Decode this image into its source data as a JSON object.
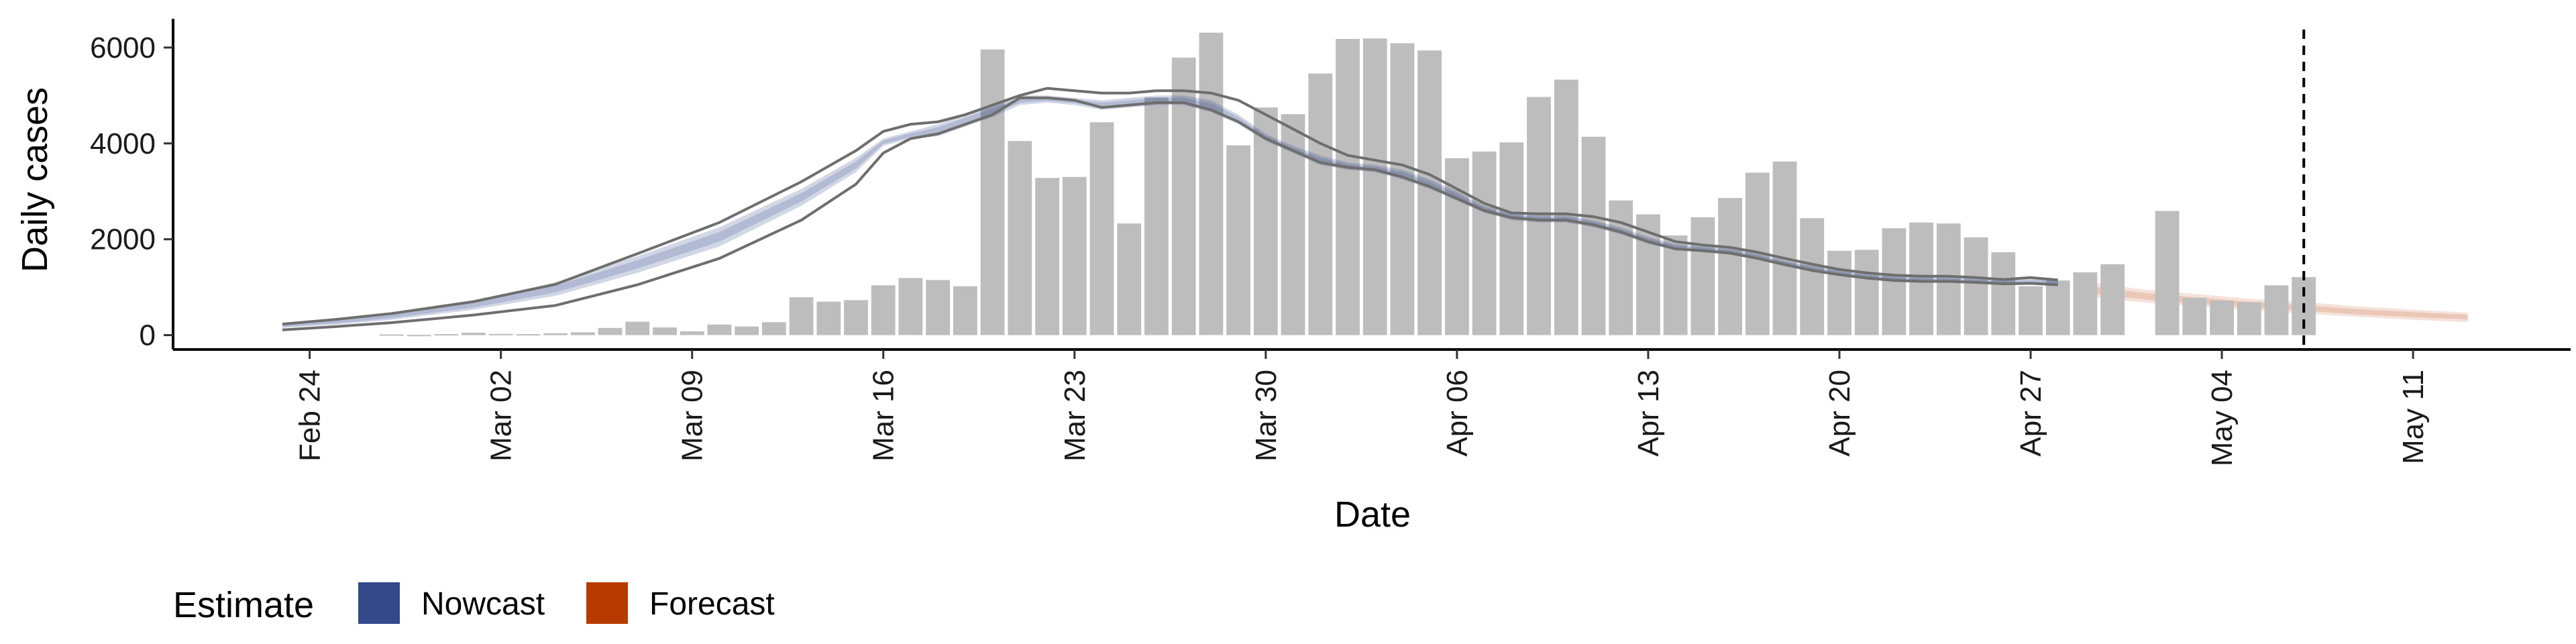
{
  "chart_data": {
    "type": "bar",
    "xlabel": "Date",
    "ylabel": "Daily cases",
    "ylim": [
      -300,
      6600
    ],
    "yticks": [
      0,
      2000,
      4000,
      6000
    ],
    "xticks": [
      "Feb 24",
      "Mar 02",
      "Mar 09",
      "Mar 16",
      "Mar 23",
      "Mar 30",
      "Apr 06",
      "Apr 13",
      "Apr 20",
      "Apr 27",
      "May 04",
      "May 11"
    ],
    "xrange": [
      "2020-02-19",
      "2020-05-15"
    ],
    "vline_date": "2020-05-07",
    "grid": false,
    "colors": {
      "bars": "#bdbdbd",
      "nowcast": "#34498a",
      "forecast": "#b73b00",
      "outline_lines": "#6e6e6e",
      "axis": "#000000"
    },
    "bars": {
      "dates": [
        "2020-02-27",
        "2020-02-28",
        "2020-02-29",
        "2020-03-01",
        "2020-03-02",
        "2020-03-03",
        "2020-03-04",
        "2020-03-05",
        "2020-03-06",
        "2020-03-07",
        "2020-03-08",
        "2020-03-09",
        "2020-03-10",
        "2020-03-11",
        "2020-03-12",
        "2020-03-13",
        "2020-03-14",
        "2020-03-15",
        "2020-03-16",
        "2020-03-17",
        "2020-03-18",
        "2020-03-19",
        "2020-03-20",
        "2020-03-21",
        "2020-03-22",
        "2020-03-23",
        "2020-03-24",
        "2020-03-25",
        "2020-03-26",
        "2020-03-27",
        "2020-03-28",
        "2020-03-29",
        "2020-03-30",
        "2020-03-31",
        "2020-04-01",
        "2020-04-02",
        "2020-04-03",
        "2020-04-04",
        "2020-04-05",
        "2020-04-06",
        "2020-04-07",
        "2020-04-08",
        "2020-04-09",
        "2020-04-10",
        "2020-04-11",
        "2020-04-12",
        "2020-04-13",
        "2020-04-14",
        "2020-04-15",
        "2020-04-16",
        "2020-04-17",
        "2020-04-18",
        "2020-04-19",
        "2020-04-20",
        "2020-04-21",
        "2020-04-22",
        "2020-04-23",
        "2020-04-24",
        "2020-04-25",
        "2020-04-26",
        "2020-04-27",
        "2020-04-28",
        "2020-04-29",
        "2020-04-30",
        "2020-05-01",
        "2020-05-02",
        "2020-05-03",
        "2020-05-04",
        "2020-05-05",
        "2020-05-06",
        "2020-05-07"
      ],
      "values": [
        15,
        5,
        20,
        50,
        25,
        20,
        40,
        60,
        150,
        280,
        160,
        80,
        220,
        180,
        270,
        790,
        700,
        730,
        1040,
        1190,
        1150,
        1020,
        5960,
        4050,
        3280,
        3300,
        4440,
        2330,
        4960,
        5790,
        6310,
        3960,
        4750,
        4610,
        5460,
        6180,
        6190,
        6090,
        5940,
        3690,
        3830,
        4020,
        4970,
        5330,
        4140,
        2810,
        2520,
        2080,
        2460,
        2860,
        3390,
        3620,
        2440,
        1760,
        1780,
        2230,
        2350,
        2330,
        2040,
        1730,
        1020,
        1140,
        1310,
        1480,
        0,
        2590,
        780,
        720,
        690,
        1040,
        1210
      ]
    },
    "nowcast": {
      "dates": [
        "2020-02-23",
        "2020-02-25",
        "2020-02-27",
        "2020-03-01",
        "2020-03-04",
        "2020-03-07",
        "2020-03-10",
        "2020-03-13",
        "2020-03-15",
        "2020-03-16",
        "2020-03-17",
        "2020-03-18",
        "2020-03-19",
        "2020-03-20",
        "2020-03-21",
        "2020-03-22",
        "2020-03-23",
        "2020-03-24",
        "2020-03-25",
        "2020-03-26",
        "2020-03-27",
        "2020-03-28",
        "2020-03-29",
        "2020-03-30",
        "2020-03-31",
        "2020-04-01",
        "2020-04-02",
        "2020-04-03",
        "2020-04-04",
        "2020-04-05",
        "2020-04-06",
        "2020-04-07",
        "2020-04-08",
        "2020-04-09",
        "2020-04-10",
        "2020-04-11",
        "2020-04-12",
        "2020-04-13",
        "2020-04-14",
        "2020-04-15",
        "2020-04-16",
        "2020-04-17",
        "2020-04-18",
        "2020-04-19",
        "2020-04-20",
        "2020-04-21",
        "2020-04-22",
        "2020-04-23",
        "2020-04-24",
        "2020-04-25",
        "2020-04-26",
        "2020-04-27",
        "2020-04-28"
      ],
      "upper": [
        230,
        330,
        460,
        720,
        1100,
        1650,
        2250,
        3050,
        3700,
        4100,
        4250,
        4400,
        4600,
        4800,
        5000,
        5000,
        4950,
        4900,
        4950,
        5000,
        5000,
        4900,
        4600,
        4200,
        3950,
        3750,
        3600,
        3550,
        3450,
        3250,
        3000,
        2700,
        2550,
        2500,
        2500,
        2400,
        2250,
        2050,
        1900,
        1850,
        1800,
        1700,
        1550,
        1450,
        1350,
        1280,
        1230,
        1200,
        1200,
        1170,
        1150,
        1180,
        1180
      ],
      "lower": [
        150,
        220,
        320,
        530,
        820,
        1300,
        1850,
        2700,
        3400,
        3950,
        4100,
        4150,
        4350,
        4550,
        4800,
        4850,
        4800,
        4700,
        4750,
        4800,
        4800,
        4650,
        4400,
        4050,
        3800,
        3550,
        3450,
        3400,
        3250,
        3050,
        2800,
        2550,
        2400,
        2350,
        2350,
        2250,
        2100,
        1900,
        1780,
        1750,
        1700,
        1580,
        1450,
        1330,
        1250,
        1180,
        1130,
        1110,
        1110,
        1090,
        1060,
        1060,
        1030
      ]
    },
    "outline": {
      "upper": [
        230,
        330,
        450,
        700,
        1060,
        1700,
        2350,
        3200,
        3850,
        4250,
        4400,
        4450,
        4600,
        4800,
        5000,
        5150,
        5100,
        5050,
        5050,
        5100,
        5100,
        5050,
        4900,
        4600,
        4300,
        4000,
        3750,
        3650,
        3550,
        3350,
        3050,
        2750,
        2550,
        2530,
        2530,
        2470,
        2350,
        2150,
        1950,
        1880,
        1830,
        1730,
        1600,
        1480,
        1370,
        1300,
        1250,
        1230,
        1230,
        1200,
        1160,
        1200,
        1150
      ],
      "lower": [
        110,
        180,
        260,
        420,
        620,
        1050,
        1600,
        2400,
        3150,
        3800,
        4100,
        4200,
        4400,
        4600,
        4950,
        4950,
        4900,
        4750,
        4800,
        4850,
        4850,
        4700,
        4450,
        4100,
        3850,
        3600,
        3500,
        3450,
        3300,
        3100,
        2850,
        2600,
        2450,
        2400,
        2400,
        2300,
        2150,
        1950,
        1800,
        1760,
        1710,
        1600,
        1470,
        1350,
        1260,
        1190,
        1140,
        1120,
        1120,
        1100,
        1070,
        1080,
        1050
      ]
    },
    "forecast": {
      "dates": [
        "2020-04-29",
        "2020-05-01",
        "2020-05-03",
        "2020-05-05",
        "2020-05-07",
        "2020-05-09",
        "2020-05-11",
        "2020-05-13"
      ],
      "upper": [
        1120,
        960,
        860,
        760,
        690,
        600,
        530,
        470
      ],
      "median": [
        950,
        820,
        720,
        640,
        560,
        480,
        430,
        380
      ],
      "lower": [
        800,
        690,
        600,
        520,
        450,
        380,
        320,
        270
      ]
    },
    "legend": {
      "title": "Estimate",
      "placement": "bottom-left",
      "entries": [
        {
          "label": "Nowcast",
          "color": "#34498a"
        },
        {
          "label": "Forecast",
          "color": "#b73b00"
        }
      ]
    }
  }
}
